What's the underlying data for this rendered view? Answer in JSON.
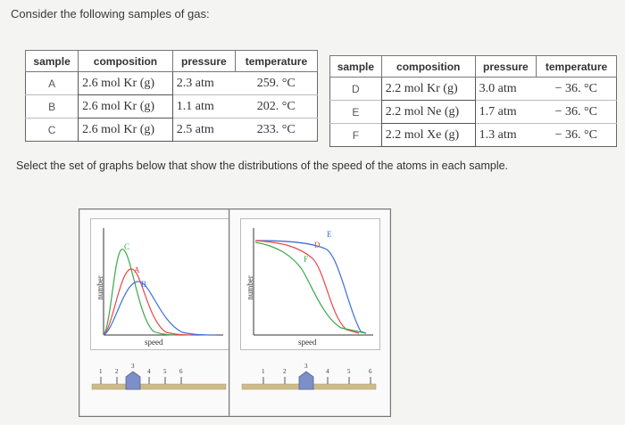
{
  "prompt": "Consider the following samples of gas:",
  "headers": {
    "sample": "sample",
    "composition": "composition",
    "pressure": "pressure",
    "temperature": "temperature"
  },
  "samples_left": [
    {
      "sample": "A",
      "composition": "2.6 mol Kr (g)",
      "pressure": "2.3 atm",
      "temperature": "259. °C"
    },
    {
      "sample": "B",
      "composition": "2.6 mol Kr (g)",
      "pressure": "1.1 atm",
      "temperature": "202. °C"
    },
    {
      "sample": "C",
      "composition": "2.6 mol Kr (g)",
      "pressure": "2.5 atm",
      "temperature": "233. °C"
    }
  ],
  "samples_right": [
    {
      "sample": "D",
      "composition": "2.2 mol Kr (g)",
      "pressure": "3.0 atm",
      "temperature": "− 36. °C"
    },
    {
      "sample": "E",
      "composition": "2.2 mol Ne (g)",
      "pressure": "1.7 atm",
      "temperature": "− 36. °C"
    },
    {
      "sample": "F",
      "composition": "2.2 mol Xe (g)",
      "pressure": "1.3 atm",
      "temperature": "− 36. °C"
    }
  ],
  "question": "Select the set of graphs below that show the distributions of the speed of the atoms in each sample.",
  "graphs": [
    {
      "ylabel": "number",
      "xlabel": "speed",
      "curve_labels": [
        "C",
        "A",
        "B"
      ],
      "slider_ticks": [
        "1",
        "2",
        "3",
        "4",
        "5",
        "6"
      ],
      "slider_value": 3
    },
    {
      "ylabel": "number",
      "xlabel": "speed",
      "curve_labels": [
        "E",
        "D",
        "F"
      ],
      "slider_ticks": [
        "1",
        "2",
        "3",
        "4",
        "5",
        "6"
      ],
      "slider_value": 3
    }
  ],
  "colors": {
    "red": "#e8474a",
    "green": "#3aa84a",
    "blue": "#3b6fd8",
    "slider_thumb": "#7d8fc8",
    "slider_track": "#cdbb8a"
  }
}
